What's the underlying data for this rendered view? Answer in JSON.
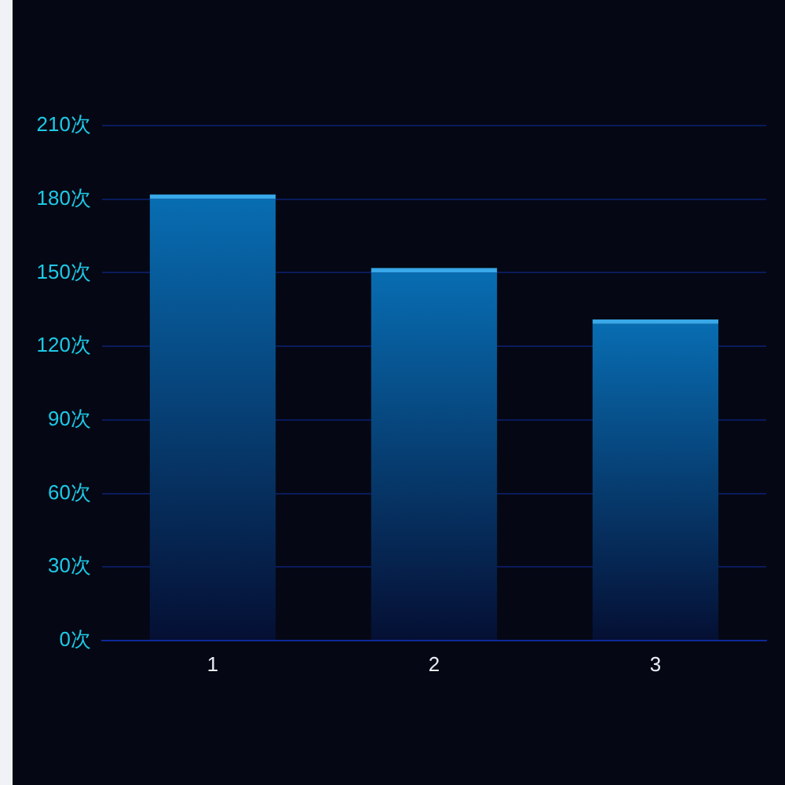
{
  "chart_data": {
    "type": "bar",
    "categories": [
      "1",
      "2",
      "3"
    ],
    "values": [
      182,
      152,
      131
    ],
    "color": "#38a8e8",
    "ylim": [
      0,
      210
    ],
    "yticks": [
      {
        "value": 0,
        "label": "0次"
      },
      {
        "value": 30,
        "label": "30次"
      },
      {
        "value": 60,
        "label": "60次"
      },
      {
        "value": 90,
        "label": "90次"
      },
      {
        "value": 120,
        "label": "120次"
      },
      {
        "value": 150,
        "label": "150次"
      },
      {
        "value": 180,
        "label": "180次"
      },
      {
        "value": 210,
        "label": "210次"
      }
    ],
    "grid": "y"
  }
}
